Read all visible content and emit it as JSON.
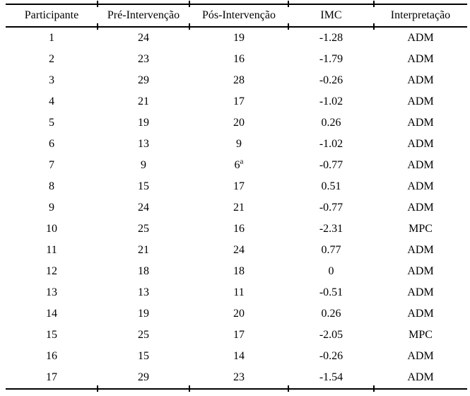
{
  "colors": {
    "text": "#000000",
    "background": "#ffffff",
    "rule": "#000000"
  },
  "table": {
    "headers": [
      "Participante",
      "Pré-Intervenção",
      "Pós-Intervenção",
      "IMC",
      "Interpretação"
    ],
    "footnote_marker": "a",
    "rows": [
      [
        "1",
        "24",
        "19",
        "-1.28",
        "ADM"
      ],
      [
        "2",
        "23",
        "16",
        "-1.79",
        "ADM"
      ],
      [
        "3",
        "29",
        "28",
        "-0.26",
        "ADM"
      ],
      [
        "4",
        "21",
        "17",
        "-1.02",
        "ADM"
      ],
      [
        "5",
        "19",
        "20",
        "0.26",
        "ADM"
      ],
      [
        "6",
        "13",
        "9",
        "-1.02",
        "ADM"
      ],
      [
        "7",
        "9",
        "6^a",
        "-0.77",
        "ADM"
      ],
      [
        "8",
        "15",
        "17",
        "0.51",
        "ADM"
      ],
      [
        "9",
        "24",
        "21",
        "-0.77",
        "ADM"
      ],
      [
        "10",
        "25",
        "16",
        "-2.31",
        "MPC"
      ],
      [
        "11",
        "21",
        "24",
        "0.77",
        "ADM"
      ],
      [
        "12",
        "18",
        "18",
        "0",
        "ADM"
      ],
      [
        "13",
        "13",
        "11",
        "-0.51",
        "ADM"
      ],
      [
        "14",
        "19",
        "20",
        "0.26",
        "ADM"
      ],
      [
        "15",
        "25",
        "17",
        "-2.05",
        "MPC"
      ],
      [
        "16",
        "15",
        "14",
        "-0.26",
        "ADM"
      ],
      [
        "17",
        "29",
        "23",
        "-1.54",
        "ADM"
      ]
    ]
  }
}
